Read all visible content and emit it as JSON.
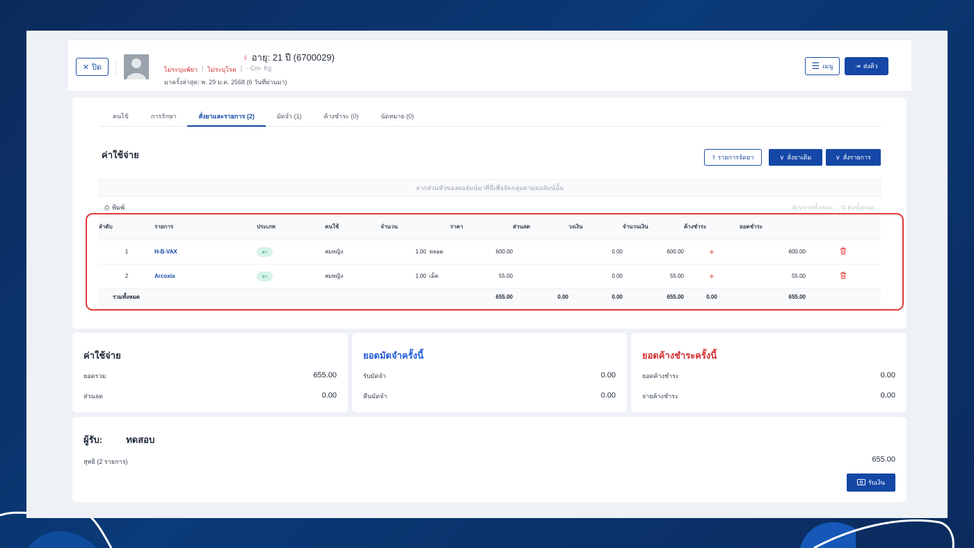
{
  "header": {
    "close_label": "ปิด",
    "age_text": "อายุ: 21 ปี (6700029)",
    "allergy": "ไม่ระบุแพ้ยา",
    "disease": "ไม่ระบุโรค",
    "vitals": "- Cm- Kg",
    "last_visit": "มาครั้งล่าสุด: พ. 29 ม.ค. 2568 (6 วันที่ผ่านมา)",
    "menu_label": "เมนู",
    "send_label": "ส่งคิว"
  },
  "tabs": [
    {
      "label": "คนไข้"
    },
    {
      "label": "การรักษา"
    },
    {
      "label": "สั่งยาและรายการ (2)"
    },
    {
      "label": "มัดจำ (1)"
    },
    {
      "label": "ค้างชำระ (0)"
    },
    {
      "label": "นัดหมาย (0)"
    }
  ],
  "expenses_section": {
    "title": "ค่าใช้จ่าย",
    "btn_drug_list": "รายการจัดยา",
    "btn_reorder": "สั่งยาเดิม",
    "btn_order": "สั่งรายการ",
    "group_hint": "ลากส่วนหัวของคอลัมน์มาที่นี่เพื่อจัดกลุ่มตามคอลัมน์นั้น",
    "print_label": "พิมพ์",
    "expand_all": "ขยายทั้งหมด",
    "collapse_all": "ย่อทั้งหมด"
  },
  "table": {
    "headers": [
      "ลำดับ",
      "รายการ",
      "ประเภท",
      "คนใช้",
      "จำนวน",
      "ราคา",
      "ส่วนลด",
      "วงเงิน",
      "จำนวนเงิน",
      "ค้างชำระ",
      "ยอดชำระ"
    ],
    "rows": [
      {
        "no": "1",
        "item": "H-B-VAX",
        "type": "ยา",
        "user": "สมหญิง",
        "qty": "1.00",
        "unit": "หลอด",
        "price": "600.00",
        "discount": "",
        "limit": "0.00",
        "amount": "600.00",
        "pay": "600.00"
      },
      {
        "no": "2",
        "item": "Arcoxia",
        "type": "ยา",
        "user": "สมหญิง",
        "qty": "1.00",
        "unit": "เม็ด",
        "price": "55.00",
        "discount": "",
        "limit": "0.00",
        "amount": "55.00",
        "pay": "55.00"
      }
    ],
    "total": {
      "label": "รวมทั้งหมด",
      "price": "655.00",
      "discount": "0.00",
      "limit": "0.00",
      "amount": "655.00",
      "outstanding": "0.00",
      "pay": "655.00"
    }
  },
  "summary": {
    "cost": {
      "title": "ค่าใช้จ่าย",
      "total_label": "ยอดรวม",
      "total_value": "655.00",
      "discount_label": "ส่วนลด",
      "discount_value": "0.00"
    },
    "deposit": {
      "title": "ยอดมัดจำครั้งนี้",
      "receive_label": "รับมัดจำ",
      "receive_value": "0.00",
      "refund_label": "คืนมัดจำ",
      "refund_value": "0.00"
    },
    "outstanding": {
      "title": "ยอดค้างชำระครั้งนี้",
      "owed_label": "ยอดค้างชำระ",
      "owed_value": "0.00",
      "paid_label": "จ่ายค้างชำระ",
      "paid_value": "0.00"
    }
  },
  "receiver": {
    "prefix": "ผู้รับ:",
    "name": "ทดสอบ",
    "net_label": "สุทธิ (2 รายการ)",
    "net_value": "655.00",
    "pay_button": "รับเงิน"
  },
  "colors": {
    "primary": "#1447a6",
    "danger": "#e53935",
    "background": "#0c2a5c"
  }
}
